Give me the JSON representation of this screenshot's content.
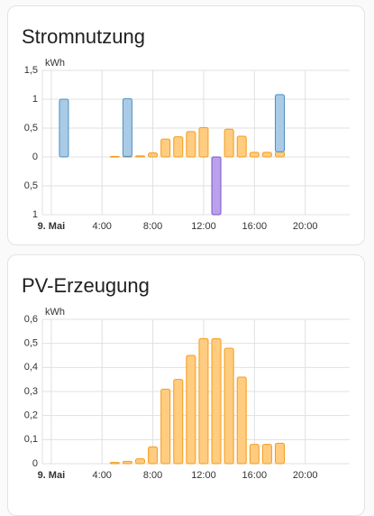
{
  "chart_data": [
    {
      "type": "bar",
      "title": "Stromnutzung",
      "y_unit": "kWh",
      "x": [
        0,
        1,
        2,
        3,
        4,
        5,
        6,
        7,
        8,
        9,
        10,
        11,
        12,
        13,
        14,
        15,
        16,
        17,
        18,
        19,
        20,
        21,
        22,
        23
      ],
      "series": [
        {
          "color": "#ffcc80",
          "stroke": "#f59c1a",
          "values": [
            null,
            null,
            null,
            null,
            null,
            0.01,
            0.01,
            0.02,
            0.07,
            0.31,
            0.35,
            0.44,
            0.51,
            null,
            0.48,
            0.36,
            0.08,
            0.08,
            0.09,
            null,
            null,
            null,
            null,
            null
          ]
        },
        {
          "color": "#a9cbe8",
          "stroke": "#4d8ec4",
          "values": [
            null,
            1.0,
            null,
            null,
            null,
            null,
            1.0,
            null,
            null,
            null,
            null,
            null,
            null,
            null,
            null,
            null,
            null,
            null,
            0.99,
            null,
            null,
            null,
            null,
            null
          ]
        },
        {
          "color": "#b9a2ea",
          "stroke": "#7e52cf",
          "values": [
            null,
            null,
            null,
            null,
            null,
            null,
            null,
            null,
            null,
            null,
            null,
            null,
            null,
            -1.0,
            null,
            null,
            null,
            null,
            null,
            null,
            null,
            null,
            null,
            null
          ]
        }
      ],
      "stacked": true,
      "xlim": [
        -0.7,
        23.5
      ],
      "xticks": [
        {
          "value": 0,
          "label": "9. Mai"
        },
        {
          "value": 4,
          "label": "4:00"
        },
        {
          "value": 8,
          "label": "8:00"
        },
        {
          "value": 12,
          "label": "12:00"
        },
        {
          "value": 16,
          "label": "16:00"
        },
        {
          "value": 20,
          "label": "20:00"
        }
      ],
      "ylim": [
        -1,
        1.5
      ],
      "yticks": [
        {
          "value": 1.5,
          "label": "1,5"
        },
        1,
        {
          "value": 0.5,
          "label": "0,5"
        },
        0,
        {
          "value": -0.5,
          "label": "0,5"
        },
        {
          "value": -1,
          "label": "1"
        }
      ],
      "grid": true
    },
    {
      "type": "bar",
      "title": "PV-Erzeugung",
      "y_unit": "kWh",
      "x": [
        0,
        1,
        2,
        3,
        4,
        5,
        6,
        7,
        8,
        9,
        10,
        11,
        12,
        13,
        14,
        15,
        16,
        17,
        18,
        19,
        20,
        21,
        22,
        23
      ],
      "series": [
        {
          "color": "#ffcc80",
          "stroke": "#f59c1a",
          "values": [
            null,
            null,
            null,
            null,
            null,
            0.005,
            0.01,
            0.02,
            0.07,
            0.31,
            0.35,
            0.45,
            0.52,
            0.52,
            0.48,
            0.36,
            0.08,
            0.08,
            0.085,
            null,
            null,
            null,
            null,
            null
          ]
        }
      ],
      "stacked": true,
      "xlim": [
        -0.7,
        23.5
      ],
      "xticks": [
        {
          "value": 0,
          "label": "9. Mai"
        },
        {
          "value": 4,
          "label": "4:00"
        },
        {
          "value": 8,
          "label": "8:00"
        },
        {
          "value": 12,
          "label": "12:00"
        },
        {
          "value": 16,
          "label": "16:00"
        },
        {
          "value": 20,
          "label": "20:00"
        }
      ],
      "ylim": [
        0,
        0.6
      ],
      "yticks": [
        0,
        {
          "value": 0.1,
          "label": "0,1"
        },
        {
          "value": 0.2,
          "label": "0,2"
        },
        {
          "value": 0.3,
          "label": "0,3"
        },
        {
          "value": 0.4,
          "label": "0,4"
        },
        {
          "value": 0.5,
          "label": "0,5"
        },
        {
          "value": 0.6,
          "label": "0,6"
        }
      ],
      "grid": true
    }
  ]
}
